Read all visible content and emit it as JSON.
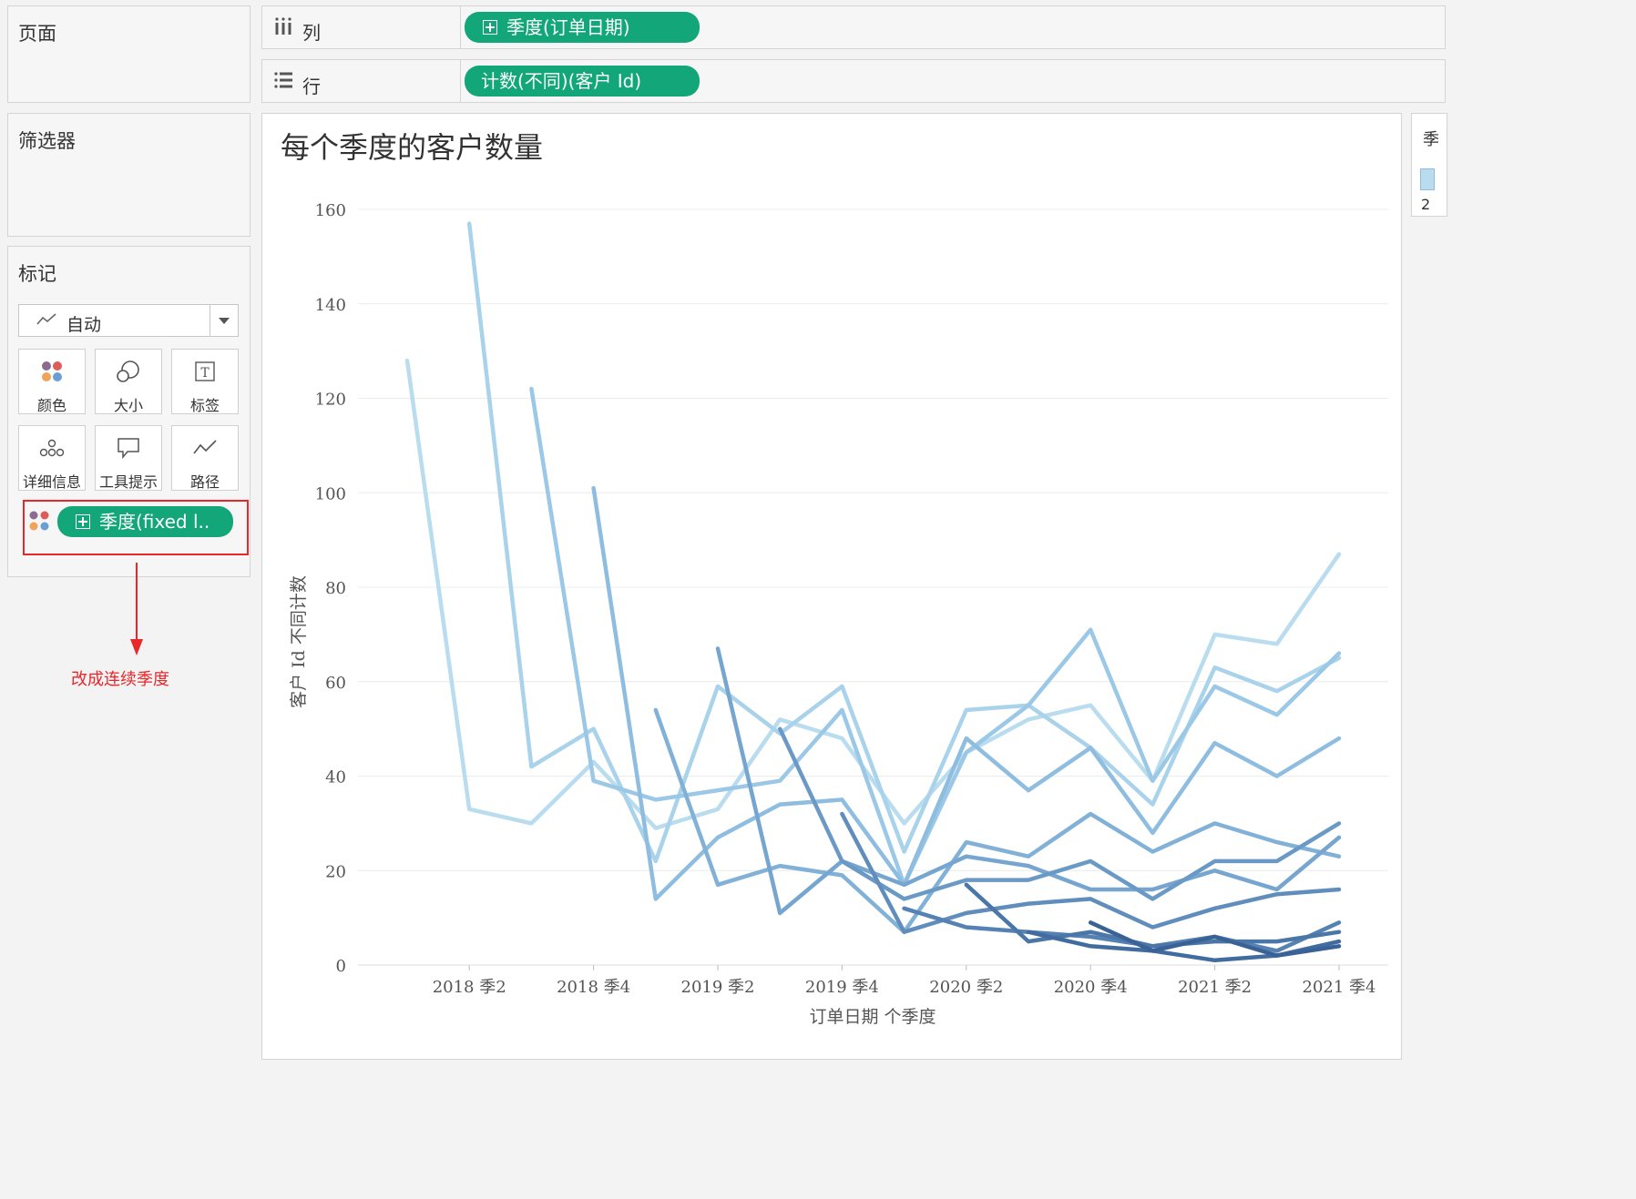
{
  "pages_panel": {
    "title": "页面"
  },
  "filters_panel": {
    "title": "筛选器"
  },
  "marks_panel": {
    "title": "标记",
    "mark_type": "自动",
    "buttons": [
      {
        "label": "颜色",
        "icon": "color-icon"
      },
      {
        "label": "大小",
        "icon": "size-icon"
      },
      {
        "label": "标签",
        "icon": "label-icon"
      },
      {
        "label": "详细信息",
        "icon": "detail-icon"
      },
      {
        "label": "工具提示",
        "icon": "tooltip-icon"
      },
      {
        "label": "路径",
        "icon": "path-icon"
      }
    ],
    "color_pill": "季度(fixed l.."
  },
  "annotation": {
    "text": "改成连续季度",
    "color": "#e8272b"
  },
  "columns_shelf": {
    "label": "列",
    "pill": "季度(订单日期)"
  },
  "rows_shelf": {
    "label": "行",
    "pill": "计数(不同)(客户 Id)"
  },
  "legend_stub": {
    "title": "季",
    "value": "2"
  },
  "colors": {
    "pill": "#12a678",
    "highlight_border": "#e8272b"
  },
  "chart_data": {
    "type": "line",
    "title": "每个季度的客户数量",
    "xlabel": "订单日期 个季度",
    "ylabel": "客户 Id 不同计数",
    "x_tick_labels": [
      "2018 季2",
      "2018 季4",
      "2019 季2",
      "2019 季4",
      "2020 季2",
      "2020 季4",
      "2021 季2",
      "2021 季4"
    ],
    "x": [
      "2018 季1",
      "2018 季2",
      "2018 季3",
      "2018 季4",
      "2019 季1",
      "2019 季2",
      "2019 季3",
      "2019 季4",
      "2020 季1",
      "2020 季2",
      "2020 季3",
      "2020 季4",
      "2021 季1",
      "2021 季2",
      "2021 季3",
      "2021 季4"
    ],
    "y_ticks": [
      0,
      20,
      40,
      60,
      80,
      100,
      120,
      140,
      160
    ],
    "ylim": [
      0,
      160
    ],
    "grid": true,
    "series": [
      {
        "values": [
          128,
          33,
          30,
          43,
          29,
          33,
          52,
          48,
          30,
          45,
          52,
          55,
          39,
          70,
          68,
          87
        ],
        "color": "#b9dcee"
      },
      {
        "values": [
          null,
          157,
          42,
          50,
          22,
          59,
          49,
          59,
          24,
          54,
          55,
          46,
          34,
          63,
          58,
          65
        ],
        "color": "#a9d2eb"
      },
      {
        "values": [
          null,
          null,
          122,
          39,
          35,
          37,
          39,
          54,
          17,
          45,
          55,
          71,
          39,
          59,
          53,
          66
        ],
        "color": "#9bc8e6"
      },
      {
        "values": [
          null,
          null,
          null,
          101,
          14,
          27,
          34,
          35,
          17,
          48,
          37,
          46,
          28,
          47,
          40,
          48
        ],
        "color": "#8ebde0"
      },
      {
        "values": [
          null,
          null,
          null,
          null,
          54,
          17,
          21,
          19,
          7,
          26,
          23,
          32,
          24,
          30,
          26,
          23
        ],
        "color": "#82b1d8"
      },
      {
        "values": [
          null,
          null,
          null,
          null,
          null,
          67,
          11,
          22,
          17,
          23,
          21,
          16,
          16,
          20,
          16,
          27
        ],
        "color": "#76a5cf"
      },
      {
        "values": [
          null,
          null,
          null,
          null,
          null,
          null,
          50,
          22,
          14,
          18,
          18,
          22,
          14,
          22,
          22,
          30
        ],
        "color": "#6b99c6"
      },
      {
        "values": [
          null,
          null,
          null,
          null,
          null,
          null,
          null,
          32,
          7,
          11,
          13,
          14,
          8,
          12,
          15,
          16
        ],
        "color": "#608dbc"
      },
      {
        "values": [
          null,
          null,
          null,
          null,
          null,
          null,
          null,
          null,
          12,
          8,
          7,
          6,
          4,
          6,
          3,
          9
        ],
        "color": "#5582b2"
      },
      {
        "values": [
          null,
          null,
          null,
          null,
          null,
          null,
          null,
          null,
          null,
          17,
          5,
          7,
          4,
          5,
          5,
          7
        ],
        "color": "#4b77a8"
      },
      {
        "values": [
          null,
          null,
          null,
          null,
          null,
          null,
          null,
          null,
          null,
          null,
          7,
          4,
          3,
          1,
          2,
          5
        ],
        "color": "#426c9f"
      },
      {
        "values": [
          null,
          null,
          null,
          null,
          null,
          null,
          null,
          null,
          null,
          null,
          null,
          9,
          3,
          6,
          2,
          4
        ],
        "color": "#3a6296"
      }
    ]
  }
}
